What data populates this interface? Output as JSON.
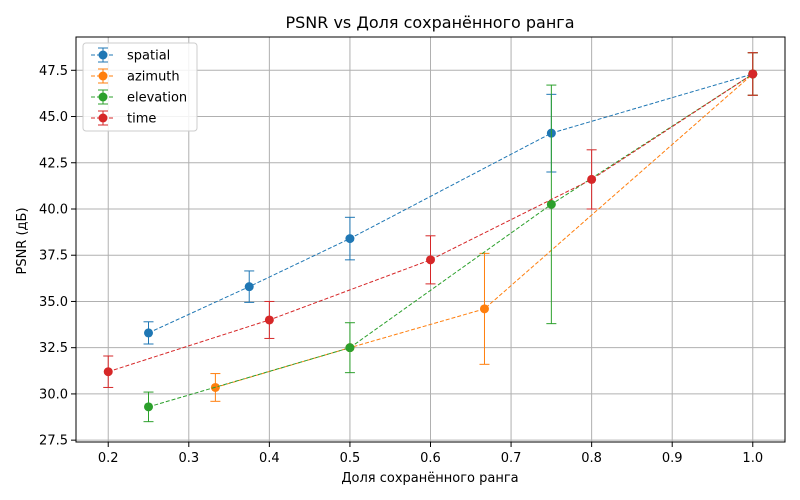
{
  "chart_data": {
    "type": "line",
    "title": "PSNR vs Доля сохранённого ранга",
    "xlabel": "Доля сохранённого ранга",
    "ylabel": "PSNR (дБ)",
    "xlim": [
      0.16,
      1.04
    ],
    "ylim": [
      27.4,
      49.3
    ],
    "xticks": [
      0.2,
      0.3,
      0.4,
      0.5,
      0.6,
      0.7,
      0.8,
      0.9,
      1.0
    ],
    "xtick_labels": [
      "0.2",
      "0.3",
      "0.4",
      "0.5",
      "0.6",
      "0.7",
      "0.8",
      "0.9",
      "1.0"
    ],
    "yticks": [
      27.5,
      30.0,
      32.5,
      35.0,
      37.5,
      40.0,
      42.5,
      45.0,
      47.5
    ],
    "ytick_labels": [
      "27.5",
      "30.0",
      "32.5",
      "35.0",
      "37.5",
      "40.0",
      "42.5",
      "45.0",
      "47.5"
    ],
    "grid": true,
    "legend_position": "top-left",
    "series": [
      {
        "name": "spatial",
        "color": "#1f77b4",
        "x": [
          0.25,
          0.375,
          0.5,
          0.75,
          1.0
        ],
        "y": [
          33.3,
          35.8,
          38.4,
          44.1,
          47.3
        ],
        "yerr": [
          0.6,
          0.85,
          1.15,
          2.1,
          1.15
        ]
      },
      {
        "name": "azimuth",
        "color": "#ff7f0e",
        "x": [
          0.333,
          0.5,
          0.667,
          1.0
        ],
        "y": [
          30.35,
          32.5,
          34.6,
          47.3
        ],
        "yerr": [
          0.75,
          0.0,
          3.0,
          1.15
        ]
      },
      {
        "name": "elevation",
        "color": "#2ca02c",
        "x": [
          0.25,
          0.5,
          0.75,
          1.0
        ],
        "y": [
          29.3,
          32.5,
          40.25,
          47.3
        ],
        "yerr": [
          0.8,
          1.35,
          6.45,
          1.15
        ]
      },
      {
        "name": "time",
        "color": "#d62728",
        "x": [
          0.2,
          0.4,
          0.6,
          0.8,
          1.0
        ],
        "y": [
          31.2,
          34.0,
          37.25,
          41.6,
          47.3
        ],
        "yerr": [
          0.85,
          1.0,
          1.3,
          1.6,
          1.15
        ]
      }
    ]
  }
}
